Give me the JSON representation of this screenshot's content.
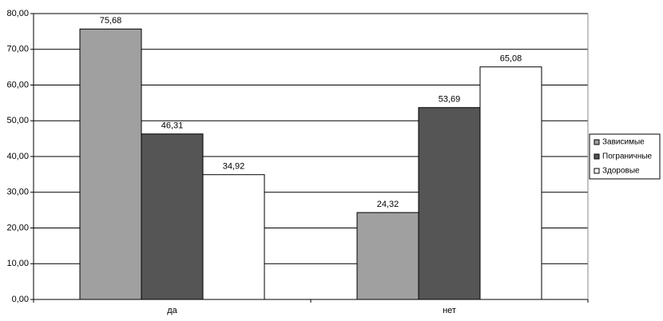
{
  "chart_data": {
    "type": "bar",
    "categories": [
      "да",
      "нет"
    ],
    "series": [
      {
        "name": "Зависимые",
        "color": "#a0a0a0",
        "values": [
          75.68,
          24.32
        ],
        "value_labels": [
          "75,68",
          "24,32"
        ]
      },
      {
        "name": "Пограничные",
        "color": "#555555",
        "values": [
          46.31,
          53.69
        ],
        "value_labels": [
          "46,31",
          "53,69"
        ]
      },
      {
        "name": "Здоровые",
        "color": "#ffffff",
        "values": [
          34.92,
          65.08
        ],
        "value_labels": [
          "34,92",
          "65,08"
        ]
      }
    ],
    "ylim": [
      0,
      80
    ],
    "yticks": [
      {
        "value": 0,
        "label": "0,00"
      },
      {
        "value": 10,
        "label": "10,00"
      },
      {
        "value": 20,
        "label": "20,00"
      },
      {
        "value": 30,
        "label": "30,00"
      },
      {
        "value": 40,
        "label": "40,00"
      },
      {
        "value": 50,
        "label": "50,00"
      },
      {
        "value": 60,
        "label": "60,00"
      },
      {
        "value": 70,
        "label": "70,00"
      },
      {
        "value": 80,
        "label": "80,00"
      }
    ],
    "grid": true,
    "legend": "right"
  }
}
